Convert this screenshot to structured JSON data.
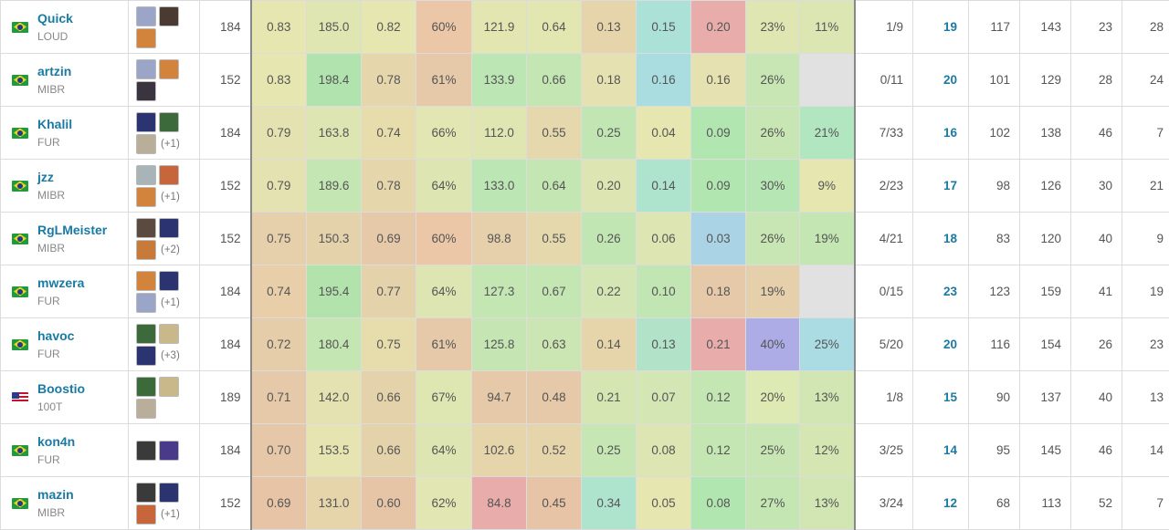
{
  "stat_columns": [
    "rating",
    "acs",
    "kd",
    "kast",
    "adr",
    "kpr",
    "apr",
    "fkpr",
    "fdpr",
    "hs",
    "cl"
  ],
  "players": [
    {
      "name": "Quick",
      "team": "LOUD",
      "flag": "br",
      "agents": [
        "#9aa5c8",
        "#4a3a32",
        "#d2843c"
      ],
      "agents_extra": "",
      "rounds": "184",
      "rating": "0.83",
      "acs": "185.0",
      "kd": "0.82",
      "kast": "60%",
      "adr": "121.9",
      "kpr": "0.64",
      "apr": "0.13",
      "fkpr": "0.15",
      "fdpr": "0.20",
      "hs": "23%",
      "cl": "11%",
      "kmax": "1/9",
      "kills": "19",
      "deaths": "117",
      "assists": "143",
      "fk": "23",
      "fd": "28"
    },
    {
      "name": "artzin",
      "team": "MIBR",
      "flag": "br",
      "agents": [
        "#9aa5c8",
        "#d2843c",
        "#3a3340"
      ],
      "agents_extra": "",
      "rounds": "152",
      "rating": "0.83",
      "acs": "198.4",
      "kd": "0.78",
      "kast": "61%",
      "adr": "133.9",
      "kpr": "0.66",
      "apr": "0.18",
      "fkpr": "0.16",
      "fdpr": "0.16",
      "hs": "26%",
      "cl": "",
      "kmax": "0/11",
      "kills": "20",
      "deaths": "101",
      "assists": "129",
      "fk": "28",
      "fd": "24"
    },
    {
      "name": "Khalil",
      "team": "FUR",
      "flag": "br",
      "agents": [
        "#2b3370",
        "#3c6a3a",
        "#b8ae9a"
      ],
      "agents_extra": "(+1)",
      "rounds": "184",
      "rating": "0.79",
      "acs": "163.8",
      "kd": "0.74",
      "kast": "66%",
      "adr": "112.0",
      "kpr": "0.55",
      "apr": "0.25",
      "fkpr": "0.04",
      "fdpr": "0.09",
      "hs": "26%",
      "cl": "21%",
      "kmax": "7/33",
      "kills": "16",
      "deaths": "102",
      "assists": "138",
      "fk": "46",
      "fd": "7"
    },
    {
      "name": "jzz",
      "team": "MIBR",
      "flag": "br",
      "agents": [
        "#a8b4b8",
        "#c7663a",
        "#d2843c"
      ],
      "agents_extra": "(+1)",
      "rounds": "152",
      "rating": "0.79",
      "acs": "189.6",
      "kd": "0.78",
      "kast": "64%",
      "adr": "133.0",
      "kpr": "0.64",
      "apr": "0.20",
      "fkpr": "0.14",
      "fdpr": "0.09",
      "hs": "30%",
      "cl": "9%",
      "kmax": "2/23",
      "kills": "17",
      "deaths": "98",
      "assists": "126",
      "fk": "30",
      "fd": "21"
    },
    {
      "name": "RgLMeister",
      "team": "MIBR",
      "flag": "br",
      "agents": [
        "#5a4a40",
        "#2b3370",
        "#c77a3a"
      ],
      "agents_extra": "(+2)",
      "rounds": "152",
      "rating": "0.75",
      "acs": "150.3",
      "kd": "0.69",
      "kast": "60%",
      "adr": "98.8",
      "kpr": "0.55",
      "apr": "0.26",
      "fkpr": "0.06",
      "fdpr": "0.03",
      "hs": "26%",
      "cl": "19%",
      "kmax": "4/21",
      "kills": "18",
      "deaths": "83",
      "assists": "120",
      "fk": "40",
      "fd": "9"
    },
    {
      "name": "mwzera",
      "team": "FUR",
      "flag": "br",
      "agents": [
        "#d2843c",
        "#2b3370",
        "#9aa5c8"
      ],
      "agents_extra": "(+1)",
      "rounds": "184",
      "rating": "0.74",
      "acs": "195.4",
      "kd": "0.77",
      "kast": "64%",
      "adr": "127.3",
      "kpr": "0.67",
      "apr": "0.22",
      "fkpr": "0.10",
      "fdpr": "0.18",
      "hs": "19%",
      "cl": "",
      "kmax": "0/15",
      "kills": "23",
      "deaths": "123",
      "assists": "159",
      "fk": "41",
      "fd": "19"
    },
    {
      "name": "havoc",
      "team": "FUR",
      "flag": "br",
      "agents": [
        "#3c6a3a",
        "#c9b98a",
        "#2b3370"
      ],
      "agents_extra": "(+3)",
      "rounds": "184",
      "rating": "0.72",
      "acs": "180.4",
      "kd": "0.75",
      "kast": "61%",
      "adr": "125.8",
      "kpr": "0.63",
      "apr": "0.14",
      "fkpr": "0.13",
      "fdpr": "0.21",
      "hs": "40%",
      "cl": "25%",
      "kmax": "5/20",
      "kills": "20",
      "deaths": "116",
      "assists": "154",
      "fk": "26",
      "fd": "23"
    },
    {
      "name": "Boostio",
      "team": "100T",
      "flag": "us",
      "agents": [
        "#3c6a3a",
        "#c9b98a",
        "#b8ae9a"
      ],
      "agents_extra": "",
      "rounds": "189",
      "rating": "0.71",
      "acs": "142.0",
      "kd": "0.66",
      "kast": "67%",
      "adr": "94.7",
      "kpr": "0.48",
      "apr": "0.21",
      "fkpr": "0.07",
      "fdpr": "0.12",
      "hs": "20%",
      "cl": "13%",
      "kmax": "1/8",
      "kills": "15",
      "deaths": "90",
      "assists": "137",
      "fk": "40",
      "fd": "13"
    },
    {
      "name": "kon4n",
      "team": "FUR",
      "flag": "br",
      "agents": [
        "#3a3a3a",
        "#4a3a8a"
      ],
      "agents_extra": "",
      "rounds": "184",
      "rating": "0.70",
      "acs": "153.5",
      "kd": "0.66",
      "kast": "64%",
      "adr": "102.6",
      "kpr": "0.52",
      "apr": "0.25",
      "fkpr": "0.08",
      "fdpr": "0.12",
      "hs": "25%",
      "cl": "12%",
      "kmax": "3/25",
      "kills": "14",
      "deaths": "95",
      "assists": "145",
      "fk": "46",
      "fd": "14"
    },
    {
      "name": "mazin",
      "team": "MIBR",
      "flag": "br",
      "agents": [
        "#3a3a3a",
        "#2b3370",
        "#c7663a"
      ],
      "agents_extra": "(+1)",
      "rounds": "152",
      "rating": "0.69",
      "acs": "131.0",
      "kd": "0.60",
      "kast": "62%",
      "adr": "84.8",
      "kpr": "0.45",
      "apr": "0.34",
      "fkpr": "0.05",
      "fdpr": "0.08",
      "hs": "27%",
      "cl": "13%",
      "kmax": "3/24",
      "kills": "12",
      "deaths": "68",
      "assists": "113",
      "fk": "52",
      "fd": "7"
    }
  ],
  "cell_colors": [
    [
      "#e6e6b1",
      "#e0e6b2",
      "#e6e6b1",
      "#ebc7a7",
      "#e3e6b1",
      "#e2e6b1",
      "#e6d4ab",
      "#abe1d7",
      "#e8adaa",
      "#e0e6b2",
      "#dbe6b3"
    ],
    [
      "#e6e6b1",
      "#b1e3ae",
      "#e5d6ac",
      "#e6c9a8",
      "#bce6b3",
      "#c3e6b3",
      "#e5e1b0",
      "#a9dde0",
      "#e5e1b0",
      "#c8e6b3",
      "#e1e1e1"
    ],
    [
      "#e4e2b1",
      "#dde6b2",
      "#e7ddac",
      "#e1e6b2",
      "#e0e6b2",
      "#e4d8ac",
      "#c2e6b3",
      "#e6e6b1",
      "#b2e6b0",
      "#c8e6b3",
      "#b2e6c1"
    ],
    [
      "#e4e2b1",
      "#c3e6b3",
      "#e5d6ac",
      "#dde6b2",
      "#bce6b3",
      "#c4e6b3",
      "#dde6b2",
      "#aee3ce",
      "#b2e6b0",
      "#b6e6b3",
      "#e6e6b1"
    ],
    [
      "#e6d0ab",
      "#e4d2ab",
      "#e6c9a8",
      "#ebc7a7",
      "#e6d0ab",
      "#e4d8ac",
      "#c2e6b3",
      "#dde6b2",
      "#aad4e6",
      "#c8e6b3",
      "#c3e6b3"
    ],
    [
      "#e8cfaa",
      "#b3e3ad",
      "#e4d2ab",
      "#dde6b2",
      "#c3e6b3",
      "#c3e6b3",
      "#d4e6b3",
      "#c1e6b3",
      "#e6c9a8",
      "#e6d0ab",
      "#e1e1e1"
    ],
    [
      "#e5cdaa",
      "#c3e6b3",
      "#e7ddac",
      "#e6c9a8",
      "#c5e6b3",
      "#cce6b3",
      "#e6d4ab",
      "#b2e3c8",
      "#e8adaa",
      "#adace6",
      "#abdce3"
    ],
    [
      "#e6c9a8",
      "#e4e2b1",
      "#e4d2ab",
      "#dee6b2",
      "#e6c9a8",
      "#e6c9a8",
      "#d6e6b3",
      "#d4e6b3",
      "#c3e6b3",
      "#ddeab3",
      "#d1e6b3"
    ],
    [
      "#e6c8a8",
      "#e6e4b1",
      "#e4d2ab",
      "#dde6b2",
      "#e6d4ab",
      "#e6d4ab",
      "#c6e6b3",
      "#dde6b2",
      "#c3e6b3",
      "#c8e6b3",
      "#d6e6b3"
    ],
    [
      "#e7c4a6",
      "#e6d4ab",
      "#e6c5a6",
      "#e1e6b2",
      "#e8adaa",
      "#e8c4a6",
      "#aee3ce",
      "#e6e6b1",
      "#b2e6b0",
      "#c3e6b3",
      "#d1e6b3"
    ]
  ]
}
